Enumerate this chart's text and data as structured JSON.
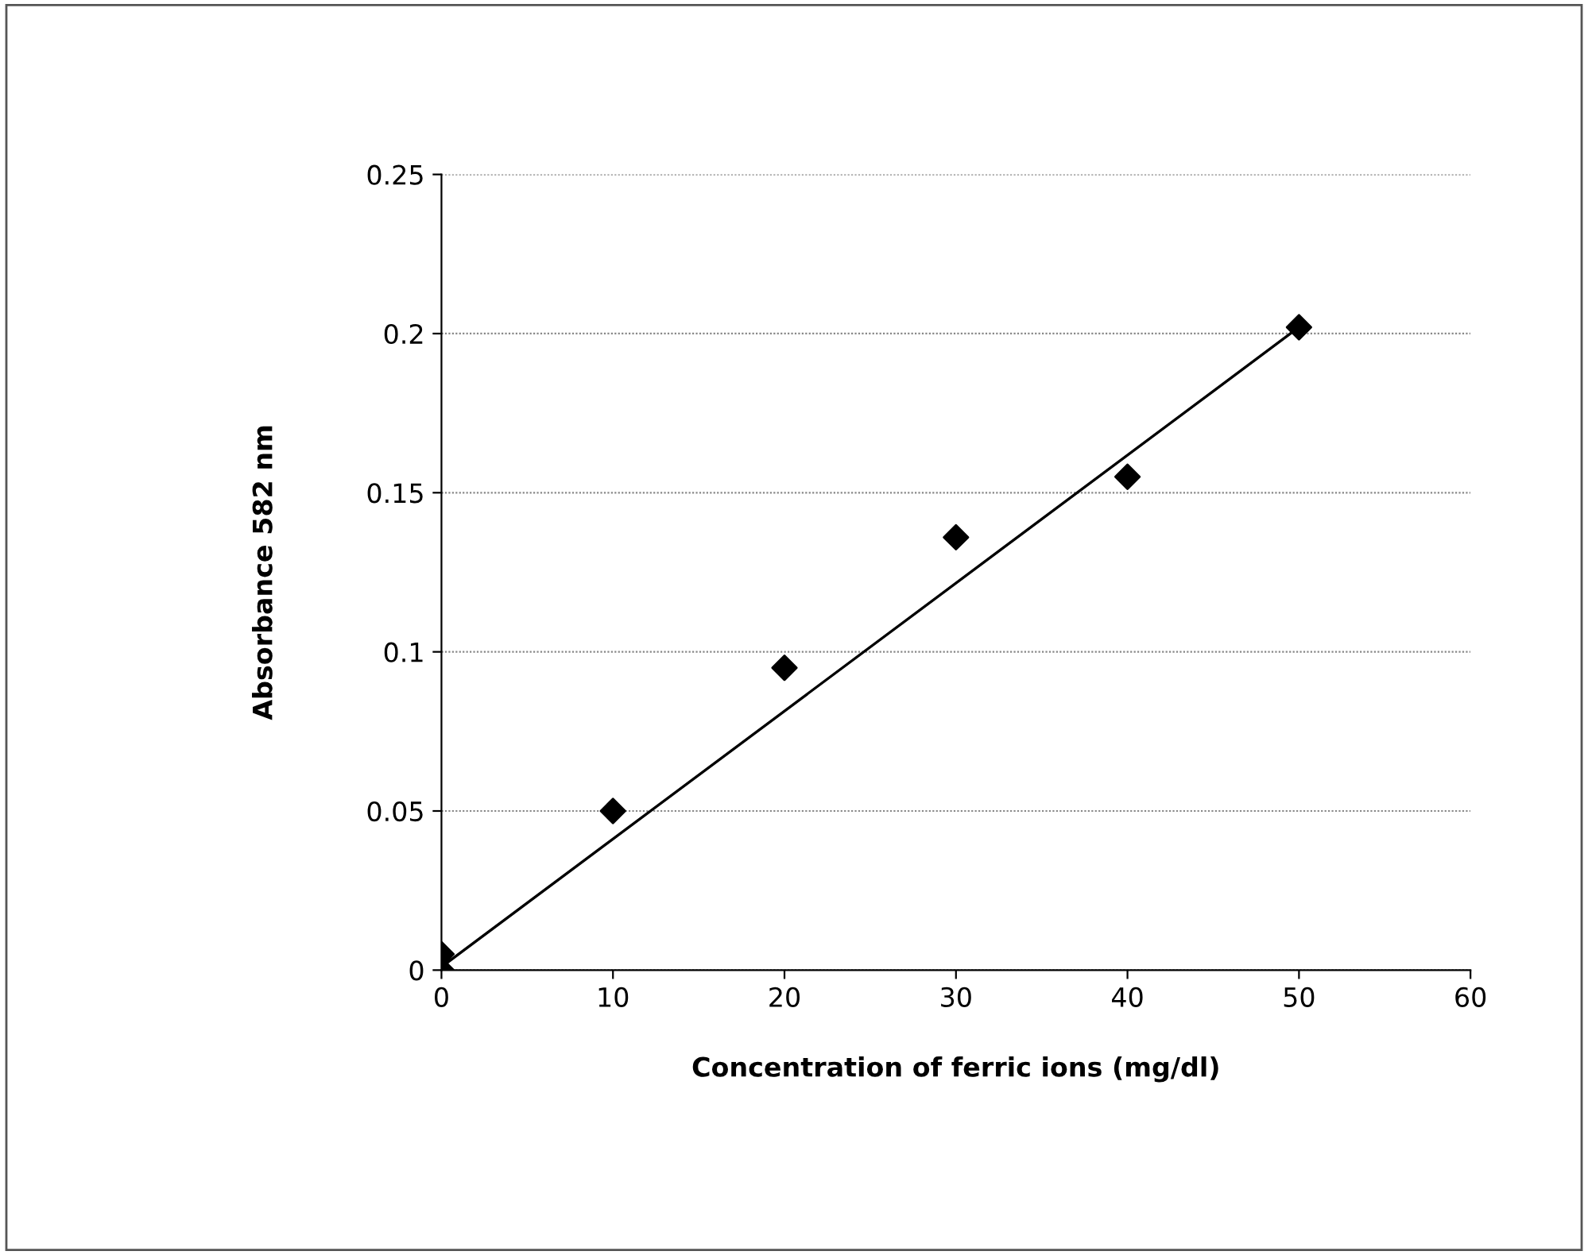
{
  "chart_data": {
    "type": "scatter",
    "xlabel": "Concentration of ferric ions (mg/dl)",
    "ylabel": "Absorbance 582 nm",
    "series": [
      {
        "color": "#000000",
        "marker": "diamond",
        "x": [
          0,
          0,
          10,
          20,
          30,
          40,
          50
        ],
        "values": [
          0.0,
          0.005,
          0.05,
          0.095,
          0.136,
          0.155,
          0.202
        ]
      },
      {
        "type": "line",
        "color": "#000000",
        "marker": "none",
        "line_style": "solid",
        "x": [
          0,
          50
        ],
        "values": [
          0.001,
          0.202
        ]
      }
    ],
    "xlim": [
      0,
      60
    ],
    "xticks": [
      0,
      10,
      20,
      30,
      40,
      50,
      60
    ],
    "ylim": [
      0,
      0.25
    ],
    "yticks": [
      0,
      0.05,
      0.1,
      0.15,
      0.2,
      0.25
    ],
    "grid": "y",
    "legend": false
  }
}
